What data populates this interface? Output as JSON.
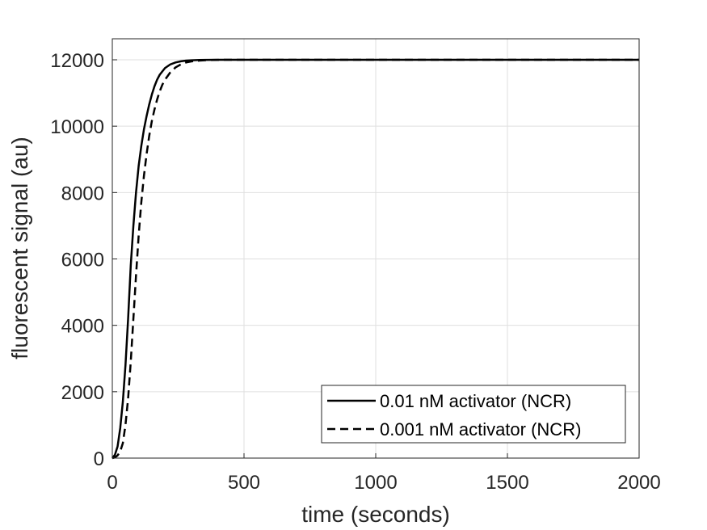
{
  "chart_data": {
    "type": "line",
    "xlabel": "time (seconds)",
    "ylabel": "fluorescent signal (au)",
    "xlim": [
      0,
      2000
    ],
    "ylim": [
      0,
      12000
    ],
    "xticks": [
      0,
      500,
      1000,
      1500,
      2000
    ],
    "yticks": [
      0,
      2000,
      4000,
      6000,
      8000,
      10000,
      12000
    ],
    "grid": true,
    "legend_position": "bottom-right",
    "series": [
      {
        "name": "0.01 nM activator (NCR)",
        "line_style": "solid",
        "color": "#000000",
        "x": [
          0,
          10,
          20,
          30,
          40,
          50,
          60,
          70,
          80,
          90,
          100,
          110,
          120,
          130,
          140,
          150,
          160,
          170,
          180,
          190,
          200,
          220,
          240,
          260,
          280,
          300,
          330,
          360,
          400,
          450,
          500,
          600,
          800,
          1000,
          1500,
          2000
        ],
        "y": [
          0,
          100,
          350,
          900,
          1700,
          2800,
          4200,
          5800,
          7000,
          8000,
          8800,
          9400,
          9900,
          10300,
          10650,
          10950,
          11200,
          11400,
          11550,
          11650,
          11750,
          11860,
          11920,
          11955,
          11975,
          11985,
          11993,
          11997,
          12000,
          12000,
          12000,
          12000,
          12000,
          12000,
          12000,
          12000
        ]
      },
      {
        "name": "0.001 nM activator (NCR)",
        "line_style": "dashed",
        "color": "#000000",
        "x": [
          0,
          10,
          20,
          30,
          40,
          50,
          60,
          70,
          80,
          90,
          100,
          110,
          120,
          130,
          140,
          150,
          160,
          170,
          180,
          190,
          200,
          220,
          240,
          260,
          280,
          300,
          330,
          360,
          400,
          450,
          500,
          600,
          800,
          1000,
          1500,
          2000
        ],
        "y": [
          0,
          20,
          80,
          200,
          450,
          1000,
          1800,
          2900,
          4200,
          5500,
          6700,
          7700,
          8500,
          9150,
          9700,
          10150,
          10500,
          10800,
          11050,
          11250,
          11400,
          11620,
          11770,
          11860,
          11920,
          11950,
          11975,
          11990,
          11998,
          12000,
          12000,
          12000,
          12000,
          12000,
          12000,
          12000
        ]
      }
    ]
  }
}
